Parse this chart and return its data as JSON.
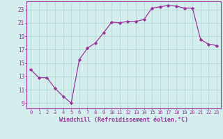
{
  "x": [
    0,
    1,
    2,
    3,
    4,
    5,
    6,
    7,
    8,
    9,
    10,
    11,
    12,
    13,
    14,
    15,
    16,
    17,
    18,
    19,
    20,
    21,
    22,
    23
  ],
  "y": [
    14.0,
    12.8,
    12.8,
    11.2,
    10.0,
    9.0,
    15.5,
    17.2,
    18.0,
    19.5,
    21.1,
    21.0,
    21.2,
    21.2,
    21.5,
    23.2,
    23.4,
    23.6,
    23.5,
    23.2,
    23.2,
    18.5,
    17.8,
    17.6
  ],
  "xlabel": "Windchill (Refroidissement éolien,°C)",
  "xticks": [
    0,
    1,
    2,
    3,
    4,
    5,
    6,
    7,
    8,
    9,
    10,
    11,
    12,
    13,
    14,
    15,
    16,
    17,
    18,
    19,
    20,
    21,
    22,
    23
  ],
  "yticks": [
    9,
    11,
    13,
    15,
    17,
    19,
    21,
    23
  ],
  "ylim": [
    8.2,
    24.2
  ],
  "xlim": [
    -0.5,
    23.5
  ],
  "line_color": "#993399",
  "marker": "D",
  "marker_size": 2.2,
  "bg_color": "#d4eeed",
  "grid_color": "#b8dcda",
  "tick_label_color": "#993399",
  "axis_color": "#993399",
  "xlabel_color": "#993399",
  "font_family": "monospace",
  "xtick_fontsize": 5.0,
  "ytick_fontsize": 5.5,
  "xlabel_fontsize": 6.0
}
